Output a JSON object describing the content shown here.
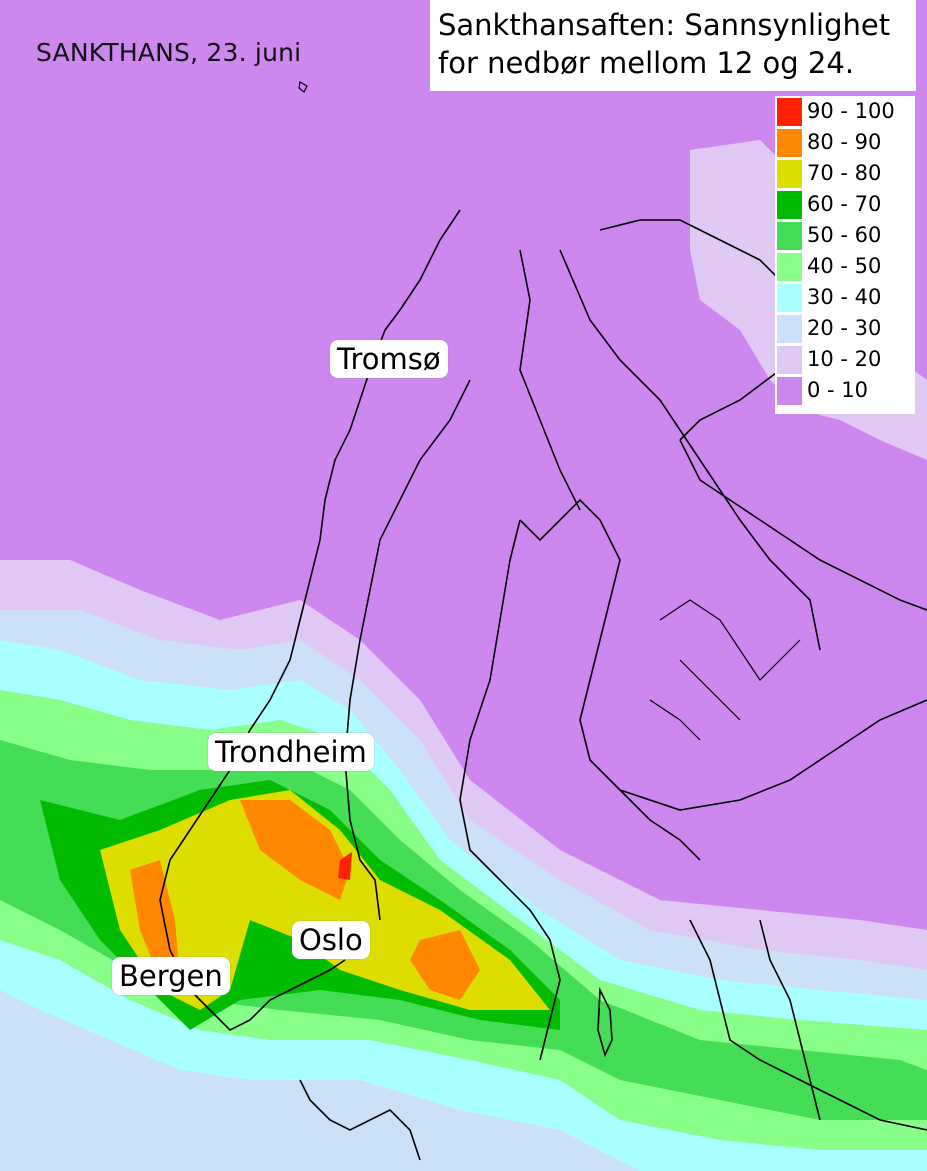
{
  "date_label": "SANKTHANS, 23. juni",
  "title": {
    "line1": "Sankthansaften: Sannsynlighet",
    "line2": "for nedbør mellom 12 og 24."
  },
  "legend": [
    {
      "label": "90 - 100",
      "color": "#ff2200"
    },
    {
      "label": "80 - 90",
      "color": "#ff8800"
    },
    {
      "label": "70 - 80",
      "color": "#dddd00"
    },
    {
      "label": "60 - 70",
      "color": "#00bb00"
    },
    {
      "label": "50 - 60",
      "color": "#44dd55"
    },
    {
      "label": "40 - 50",
      "color": "#88ff88"
    },
    {
      "label": "30 - 40",
      "color": "#aaffff"
    },
    {
      "label": "20 - 30",
      "color": "#cce0f8"
    },
    {
      "label": "10 - 20",
      "color": "#e0c8f4"
    },
    {
      "label": "0 - 10",
      "color": "#cc88ee"
    }
  ],
  "cities": {
    "tromso": "Tromsø",
    "trondheim": "Trondheim",
    "oslo": "Oslo",
    "bergen": "Bergen"
  }
}
